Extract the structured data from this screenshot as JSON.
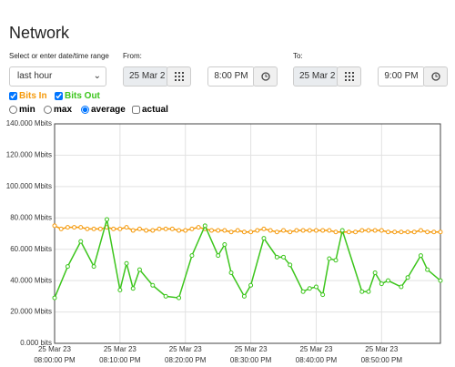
{
  "header": {
    "title": "Network"
  },
  "form": {
    "range_label": "Select or enter date/time range",
    "range_value": "last hour",
    "from_label": "From:",
    "from_date": "25 Mar 2",
    "from_time": "8:00 PM",
    "to_label": "To:",
    "to_date": "25 Mar 2",
    "to_time": "9:00 PM",
    "modes": [
      "min",
      "max",
      "average"
    ],
    "selected_mode": 2,
    "actual": "actual"
  },
  "chart_data": {
    "type": "line",
    "ylim": [
      0,
      140
    ],
    "yticks": [
      {
        "value": 0,
        "label": "0.000 bits"
      },
      {
        "value": 20,
        "label": "20.000 Mbits"
      },
      {
        "value": 40,
        "label": "40.000 Mbits"
      },
      {
        "value": 60,
        "label": "60.000 Mbits"
      },
      {
        "value": 80,
        "label": "80.000 Mbits"
      },
      {
        "value": 100,
        "label": "100.000 Mbits"
      },
      {
        "value": 120,
        "label": "120.000 Mbits"
      },
      {
        "value": 140,
        "label": "140.000 Mbits"
      }
    ],
    "xlim": [
      0,
      59
    ],
    "xticks": [
      {
        "value": 0,
        "label": [
          "25 Mar 23",
          "08:00:00 PM"
        ]
      },
      {
        "value": 10,
        "label": [
          "25 Mar 23",
          "08:10:00 PM"
        ]
      },
      {
        "value": 20,
        "label": [
          "25 Mar 23",
          "08:20:00 PM"
        ]
      },
      {
        "value": 30,
        "label": [
          "25 Mar 23",
          "08:30:00 PM"
        ]
      },
      {
        "value": 40,
        "label": [
          "25 Mar 23",
          "08:40:00 PM"
        ]
      },
      {
        "value": 50,
        "label": [
          "25 Mar 23",
          "08:50:00 PM"
        ]
      }
    ],
    "grid": true,
    "series": [
      {
        "name": "Bits In",
        "color": "#f59a0c",
        "x": [
          0,
          1,
          2,
          3,
          4,
          5,
          6,
          7,
          8,
          9,
          10,
          11,
          12,
          13,
          14,
          15,
          16,
          17,
          18,
          19,
          20,
          21,
          22,
          23,
          24,
          25,
          26,
          27,
          28,
          29,
          30,
          31,
          32,
          33,
          34,
          35,
          36,
          37,
          38,
          39,
          40,
          41,
          42,
          43,
          44,
          45,
          46,
          47,
          48,
          49,
          50,
          51,
          52,
          53,
          54,
          55,
          56,
          57,
          58,
          59
        ],
        "values": [
          75,
          73,
          74,
          74,
          74,
          73,
          73,
          73,
          74,
          73,
          73,
          74,
          72,
          73,
          72,
          72,
          73,
          73,
          73,
          72,
          72,
          73,
          74,
          73,
          72,
          72,
          72,
          71,
          72,
          71,
          71,
          72,
          73,
          72,
          71,
          72,
          71,
          72,
          72,
          72,
          72,
          72,
          72,
          71,
          71,
          71,
          71,
          72,
          72,
          72,
          72,
          71,
          71,
          71,
          71,
          71,
          72,
          71,
          71,
          71
        ]
      },
      {
        "name": "Bits Out",
        "color": "#3cc51c",
        "x": [
          0,
          2,
          4,
          6,
          8,
          10,
          11,
          12,
          13,
          15,
          17,
          19,
          21,
          23,
          25,
          26,
          27,
          29,
          30,
          32,
          34,
          35,
          36,
          38,
          39,
          40,
          41,
          42,
          43,
          44,
          47,
          48,
          49,
          50,
          51,
          53,
          54,
          56,
          57,
          59
        ],
        "values": [
          29,
          49,
          65,
          49,
          79,
          34,
          51,
          35,
          47,
          37,
          30,
          29,
          56,
          75,
          56,
          63,
          45,
          30,
          37,
          67,
          55,
          55,
          50,
          33,
          35,
          36,
          31,
          54,
          53,
          72,
          33,
          33,
          45,
          38,
          40,
          36,
          42,
          56,
          47,
          40
        ]
      }
    ]
  }
}
